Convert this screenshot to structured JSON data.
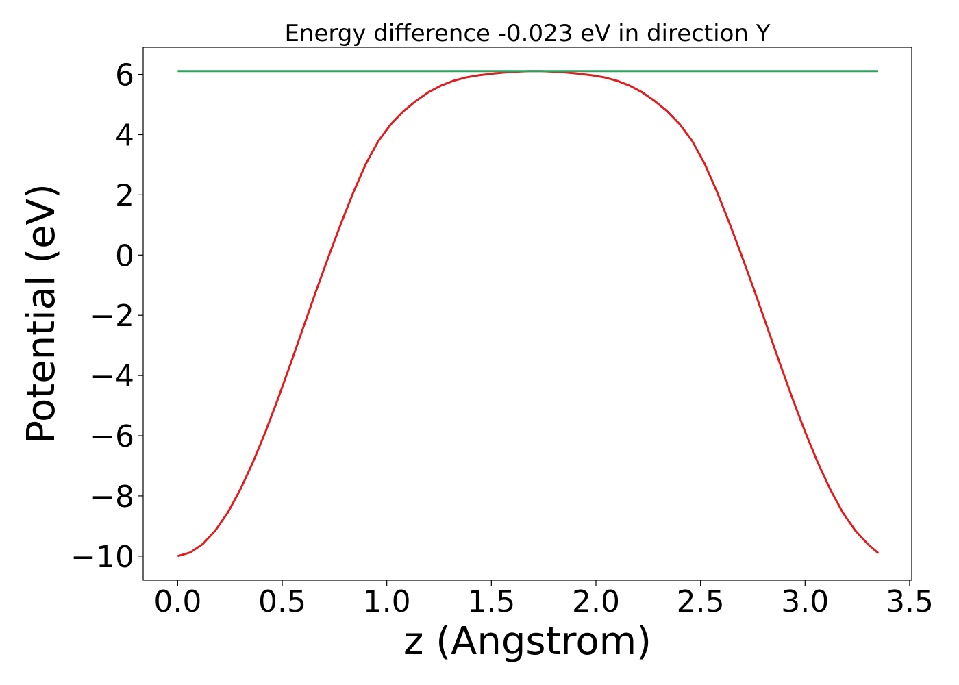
{
  "chart_data": {
    "type": "line",
    "title": "Energy difference -0.023 eV in direction Y",
    "xlabel": "z (Angstrom)",
    "ylabel": "Potential (eV)",
    "xlim": [
      -0.165,
      3.51
    ],
    "ylim": [
      -10.8,
      6.9
    ],
    "xticks": [
      0.0,
      0.5,
      1.0,
      1.5,
      2.0,
      2.5,
      3.0,
      3.5
    ],
    "xtick_labels": [
      "0.0",
      "0.5",
      "1.0",
      "1.5",
      "2.0",
      "2.5",
      "3.0",
      "3.5"
    ],
    "yticks": [
      6,
      4,
      2,
      0,
      -2,
      -4,
      -6,
      -8,
      -10
    ],
    "ytick_labels": [
      "6",
      "4",
      "2",
      "0",
      "−2",
      "−4",
      "−6",
      "−8",
      "−10"
    ],
    "grid": false,
    "series": [
      {
        "color": "#e41a1c",
        "x": [
          0.0,
          0.06,
          0.12,
          0.18,
          0.24,
          0.3,
          0.36,
          0.42,
          0.48,
          0.54,
          0.6,
          0.66,
          0.72,
          0.78,
          0.84,
          0.9,
          0.96,
          1.02,
          1.08,
          1.14,
          1.2,
          1.26,
          1.32,
          1.38,
          1.44,
          1.5,
          1.56,
          1.62,
          1.68,
          1.71,
          1.74,
          1.8,
          1.86,
          1.92,
          1.98,
          2.04,
          2.1,
          2.16,
          2.22,
          2.28,
          2.34,
          2.4,
          2.46,
          2.52,
          2.58,
          2.64,
          2.7,
          2.76,
          2.82,
          2.88,
          2.94,
          3.0,
          3.06,
          3.12,
          3.18,
          3.24,
          3.3,
          3.35
        ],
        "y": [
          -10.0,
          -9.88,
          -9.6,
          -9.15,
          -8.55,
          -7.78,
          -6.88,
          -5.87,
          -4.77,
          -3.61,
          -2.42,
          -1.23,
          -0.08,
          1.03,
          2.08,
          3.03,
          3.79,
          4.35,
          4.78,
          5.12,
          5.41,
          5.63,
          5.79,
          5.9,
          5.97,
          6.02,
          6.06,
          6.09,
          6.11,
          6.11,
          6.11,
          6.09,
          6.06,
          6.02,
          5.97,
          5.9,
          5.79,
          5.63,
          5.41,
          5.12,
          4.78,
          4.35,
          3.79,
          3.03,
          2.08,
          1.03,
          -0.08,
          -1.23,
          -2.42,
          -3.61,
          -4.77,
          -5.87,
          -6.88,
          -7.78,
          -8.55,
          -9.15,
          -9.6,
          -9.9
        ]
      },
      {
        "color": "#2ca25f",
        "x": [
          0.0,
          3.35
        ],
        "y": [
          6.11,
          6.11
        ]
      }
    ]
  }
}
